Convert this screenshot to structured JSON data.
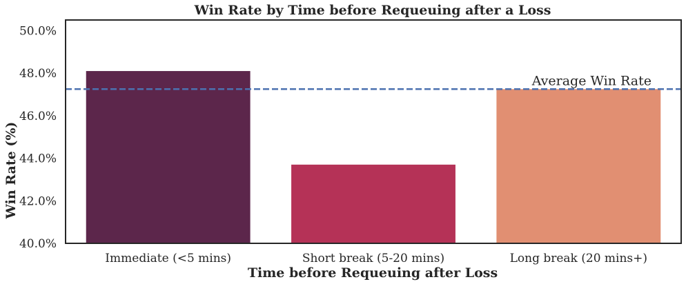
{
  "chart_data": {
    "type": "bar",
    "title": "Win Rate by Time before Requeuing after a Loss",
    "xlabel": "Time before Requeuing after Loss",
    "ylabel": "Win Rate (%)",
    "categories": [
      "Immediate (<5 mins)",
      "Short break (5-20 mins)",
      "Long break (20 mins+)"
    ],
    "values": [
      48.1,
      43.7,
      47.25
    ],
    "bar_colors": [
      "#5c264b",
      "#b53257",
      "#e18f72"
    ],
    "ylim": [
      40.0,
      50.5
    ],
    "yticks": [
      40.0,
      42.0,
      44.0,
      46.0,
      48.0,
      50.0
    ],
    "ytick_labels": [
      "40.0%",
      "42.0%",
      "44.0%",
      "46.0%",
      "48.0%",
      "50.0%"
    ],
    "reference_line": {
      "value": 47.25,
      "label": "Average Win Rate",
      "color": "#4c72b0",
      "style": "dashed"
    },
    "grid": false,
    "legend": "none"
  }
}
